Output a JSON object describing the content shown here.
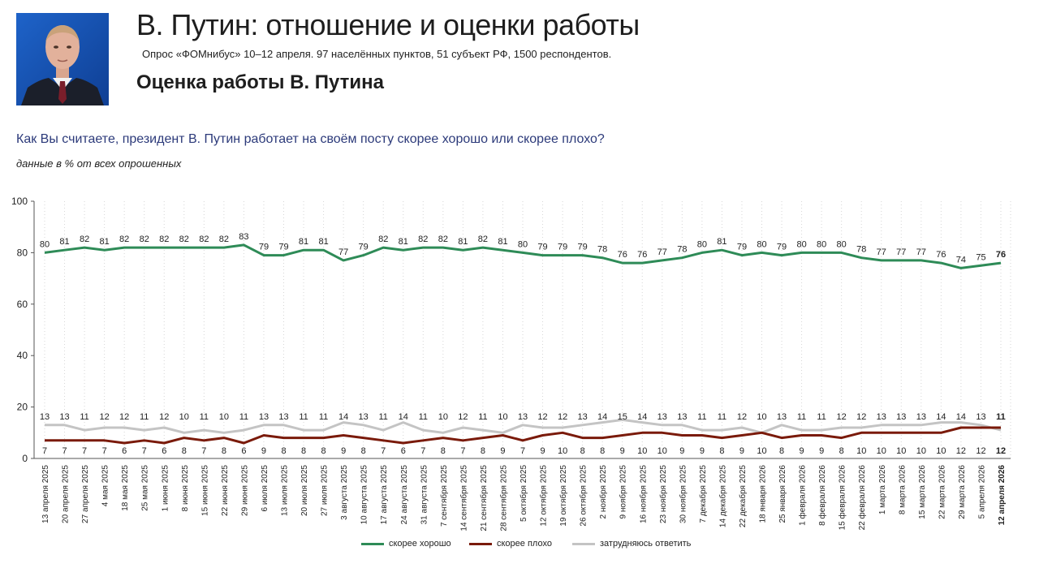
{
  "header": {
    "title": "В. Путин: отношение и оценки работы",
    "subtitle": "Опрос «ФОМнибус» 10–12 апреля. 97 населённых пунктов, 51 субъект РФ, 1500 респондентов.",
    "subheading": "Оценка работы В. Путина",
    "photo_icon": "portrait-photo"
  },
  "question": "Как Вы считаете, президент В. Путин работает на своём посту скорее хорошо или скорее плохо?",
  "note": "данные в % от всех опрошенных",
  "chart_data": {
    "type": "line",
    "ylim": [
      0,
      100
    ],
    "yticks": [
      "0",
      "20",
      "40",
      "60",
      "80",
      "100"
    ],
    "grid": "vertical dotted",
    "legend_position": "bottom",
    "categories": [
      "13 апреля 2025",
      "20 апреля 2025",
      "27 апреля 2025",
      "4 мая 2025",
      "18 мая 2025",
      "25 мая 2025",
      "1 июня 2025",
      "8 июня 2025",
      "15 июня 2025",
      "22 июня 2025",
      "29 июня 2025",
      "6 июля 2025",
      "13 июля 2025",
      "20 июля 2025",
      "27 июля 2025",
      "3 августа 2025",
      "10 августа 2025",
      "17 августа 2025",
      "24 августа 2025",
      "31 августа 2025",
      "7 сентября 2025",
      "14 сентября 2025",
      "21 сентября 2025",
      "28 сентября 2025",
      "5 октября 2025",
      "12 октября 2025",
      "19 октября 2025",
      "26 октября 2025",
      "2 ноября 2025",
      "9 ноября 2025",
      "16 ноября 2025",
      "23 ноября 2025",
      "30 ноября 2025",
      "7 декабря 2025",
      "14 декабря 2025",
      "22 декабря 2025",
      "18 января 2026",
      "25 января 2026",
      "1 февраля 2026",
      "8 февраля 2026",
      "15 февраля 2026",
      "22 февраля 2026",
      "1 марта 2026",
      "8 марта 2026",
      "15 марта 2026",
      "22 марта 2026",
      "29 марта 2026",
      "5 апреля 2026",
      "12 апреля 2026"
    ],
    "series": [
      {
        "name": "скорее хорошо",
        "color": "#2e8b57",
        "values": [
          80,
          81,
          82,
          81,
          82,
          82,
          82,
          82,
          82,
          82,
          83,
          79,
          79,
          81,
          81,
          77,
          79,
          82,
          81,
          82,
          82,
          81,
          82,
          81,
          80,
          79,
          79,
          79,
          78,
          76,
          76,
          77,
          78,
          80,
          81,
          79,
          80,
          79,
          80,
          80,
          80,
          78,
          77,
          77,
          77,
          76,
          74,
          75,
          76
        ]
      },
      {
        "name": "скорее плохо",
        "color": "#7a1a0a",
        "values": [
          7,
          7,
          7,
          7,
          6,
          7,
          6,
          8,
          7,
          8,
          6,
          9,
          8,
          8,
          8,
          9,
          8,
          7,
          6,
          7,
          8,
          7,
          8,
          9,
          7,
          9,
          10,
          8,
          8,
          9,
          10,
          10,
          9,
          9,
          8,
          9,
          10,
          8,
          9,
          9,
          8,
          10,
          10,
          10,
          10,
          10,
          12,
          12,
          12
        ]
      },
      {
        "name": "затрудняюсь ответить",
        "color": "#c4c4c4",
        "values": [
          13,
          13,
          11,
          12,
          12,
          11,
          12,
          10,
          11,
          10,
          11,
          13,
          13,
          11,
          11,
          14,
          13,
          11,
          14,
          11,
          10,
          12,
          11,
          10,
          13,
          12,
          12,
          13,
          14,
          15,
          14,
          13,
          13,
          11,
          11,
          12,
          10,
          13,
          11,
          11,
          12,
          12,
          13,
          13,
          13,
          14,
          14,
          13,
          11
        ]
      }
    ]
  }
}
